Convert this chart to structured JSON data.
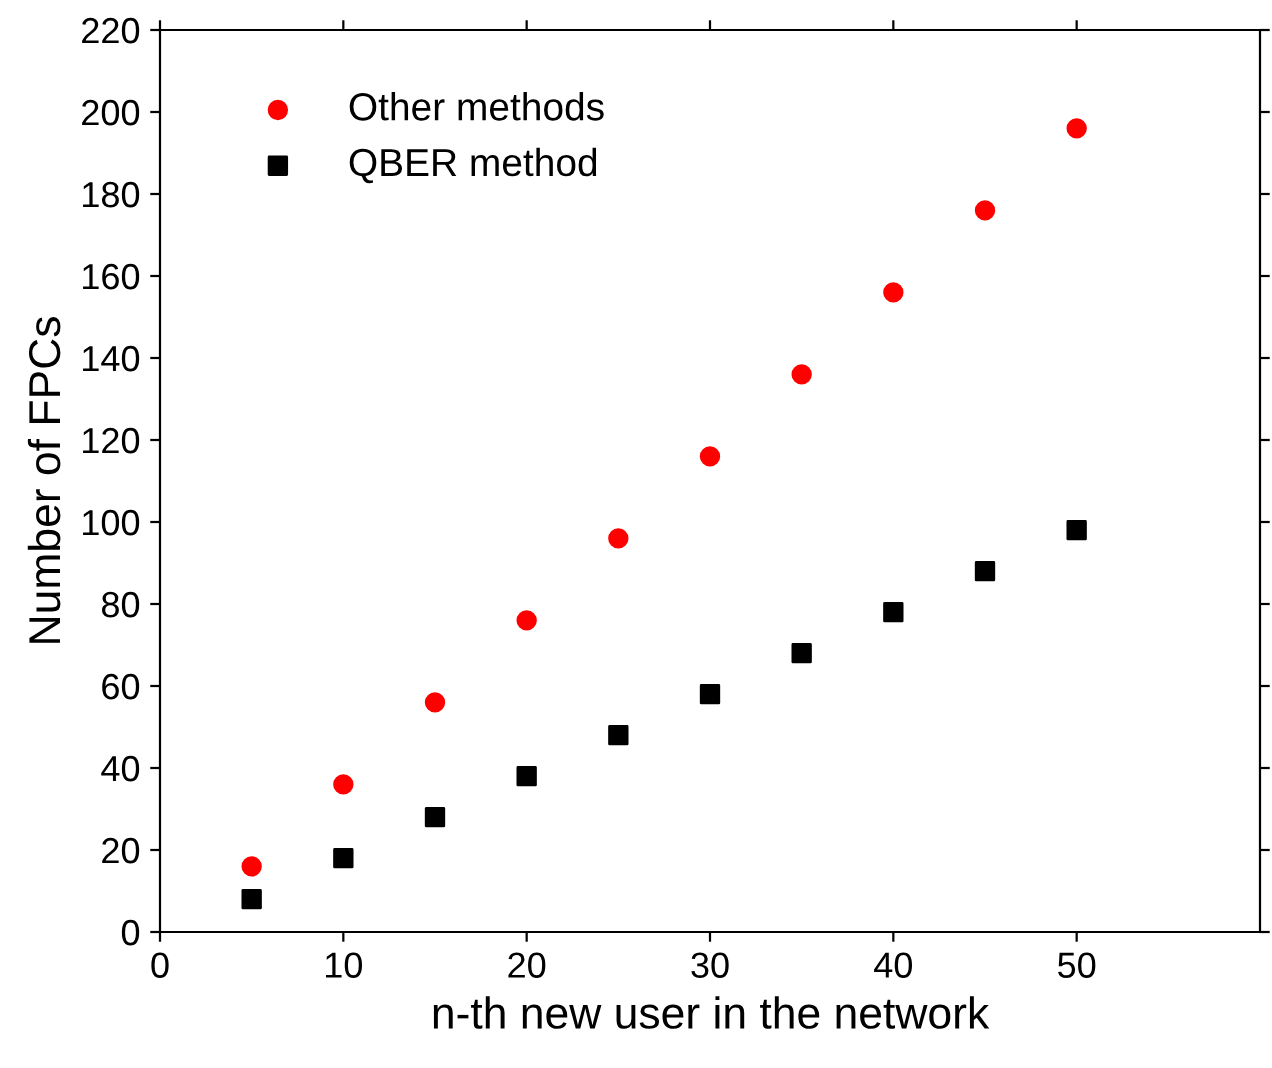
{
  "chart_data": {
    "type": "scatter",
    "xlabel": "n-th new user in the network",
    "ylabel": "Number of FPCs",
    "x": [
      5,
      10,
      15,
      20,
      25,
      30,
      35,
      40,
      45,
      50
    ],
    "series": [
      {
        "name": "Other methods",
        "color": "#ff0000",
        "marker": "circle",
        "values": [
          16,
          36,
          56,
          76,
          96,
          116,
          136,
          156,
          176,
          196
        ]
      },
      {
        "name": "QBER method",
        "color": "#000000",
        "marker": "square",
        "values": [
          8,
          18,
          28,
          38,
          48,
          58,
          68,
          78,
          88,
          98
        ]
      }
    ],
    "xlim": [
      0,
      60
    ],
    "xticks": [
      0,
      10,
      20,
      30,
      40,
      50
    ],
    "ylim": [
      0,
      220
    ],
    "yticks": [
      0,
      20,
      40,
      60,
      80,
      100,
      120,
      140,
      160,
      180,
      200,
      220
    ],
    "grid": false,
    "legend": "top left"
  }
}
